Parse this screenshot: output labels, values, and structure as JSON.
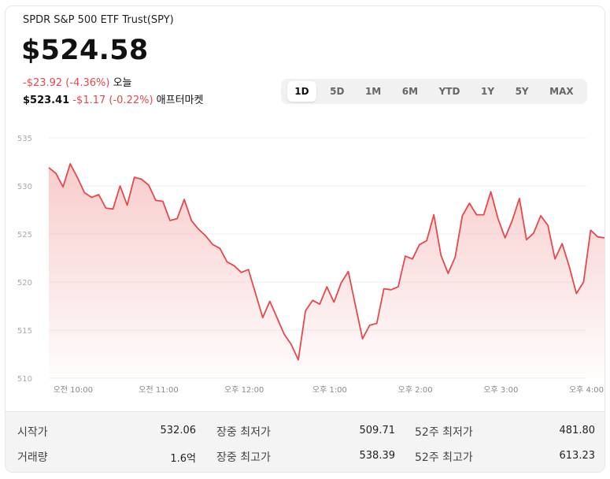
{
  "header": {
    "title": "SPDR S&P 500 ETF Trust(SPY)",
    "price": "$524.58",
    "change_today": "-$23.92 (-4.36%)",
    "today_label": "오늘",
    "after_price": "$523.41",
    "after_change": "-$1.17 (-0.22%)",
    "after_label": "애프터마켓"
  },
  "ranges": [
    "1D",
    "5D",
    "1M",
    "6M",
    "YTD",
    "1Y",
    "5Y",
    "MAX"
  ],
  "active_range": "1D",
  "colors": {
    "line": "#e5484d",
    "fill_top": "#f8c9c9",
    "negative": "#e5484d"
  },
  "chart_data": {
    "type": "area",
    "ylim": [
      510,
      535
    ],
    "yticks": [
      535,
      530,
      525,
      520,
      515,
      510
    ],
    "xtick_labels": [
      "오전 10:00",
      "오전 11:00",
      "오후 12:00",
      "오후 1:00",
      "오후 2:00",
      "오후 3:00",
      "오후 4:00"
    ],
    "xtick_positions": [
      0,
      60,
      120,
      180,
      240,
      300,
      360
    ],
    "xlim": [
      -17,
      360
    ],
    "grid": true,
    "points": [
      [
        -17,
        531.9
      ],
      [
        -12,
        531.3
      ],
      [
        -7,
        529.9
      ],
      [
        -2,
        532.3
      ],
      [
        3,
        530.9
      ],
      [
        8,
        529.3
      ],
      [
        13,
        528.8
      ],
      [
        18,
        529.1
      ],
      [
        23,
        527.7
      ],
      [
        28,
        527.6
      ],
      [
        33,
        530.0
      ],
      [
        38,
        528.0
      ],
      [
        43,
        530.9
      ],
      [
        48,
        530.7
      ],
      [
        53,
        530.1
      ],
      [
        58,
        528.5
      ],
      [
        63,
        528.4
      ],
      [
        68,
        526.4
      ],
      [
        73,
        526.6
      ],
      [
        78,
        528.6
      ],
      [
        83,
        526.4
      ],
      [
        88,
        525.5
      ],
      [
        93,
        524.8
      ],
      [
        98,
        523.9
      ],
      [
        103,
        523.5
      ],
      [
        108,
        522.1
      ],
      [
        113,
        521.7
      ],
      [
        118,
        521.0
      ],
      [
        123,
        521.3
      ],
      [
        128,
        518.8
      ],
      [
        133,
        516.3
      ],
      [
        138,
        518.0
      ],
      [
        143,
        516.3
      ],
      [
        148,
        514.6
      ],
      [
        153,
        513.5
      ],
      [
        158,
        511.9
      ],
      [
        163,
        517.0
      ],
      [
        168,
        518.1
      ],
      [
        173,
        517.7
      ],
      [
        178,
        519.5
      ],
      [
        183,
        517.9
      ],
      [
        188,
        519.9
      ],
      [
        193,
        521.1
      ],
      [
        198,
        517.6
      ],
      [
        203,
        514.1
      ],
      [
        208,
        515.5
      ],
      [
        213,
        515.7
      ],
      [
        218,
        519.3
      ],
      [
        223,
        519.2
      ],
      [
        228,
        519.5
      ],
      [
        233,
        522.7
      ],
      [
        238,
        522.4
      ],
      [
        243,
        523.9
      ],
      [
        248,
        524.3
      ],
      [
        253,
        527.0
      ],
      [
        258,
        522.8
      ],
      [
        263,
        520.9
      ],
      [
        268,
        522.6
      ],
      [
        273,
        526.9
      ],
      [
        278,
        528.2
      ],
      [
        283,
        527.0
      ],
      [
        288,
        527.0
      ],
      [
        293,
        529.4
      ],
      [
        298,
        526.6
      ],
      [
        303,
        524.6
      ],
      [
        308,
        526.4
      ],
      [
        313,
        528.7
      ],
      [
        318,
        524.4
      ],
      [
        323,
        525.1
      ],
      [
        328,
        526.9
      ],
      [
        333,
        525.9
      ],
      [
        338,
        522.4
      ],
      [
        343,
        524.0
      ],
      [
        348,
        521.6
      ],
      [
        353,
        518.8
      ],
      [
        358,
        520.0
      ],
      [
        363,
        525.4
      ],
      [
        368,
        524.7
      ],
      [
        373,
        524.6
      ]
    ]
  },
  "stats": {
    "open_label": "시작가",
    "open_value": "532.06",
    "volume_label": "거래량",
    "volume_value": "1.6억",
    "day_low_label": "장중 최저가",
    "day_low_value": "509.71",
    "day_high_label": "장중 최고가",
    "day_high_value": "538.39",
    "wk52_low_label": "52주 최저가",
    "wk52_low_value": "481.80",
    "wk52_high_label": "52주 최고가",
    "wk52_high_value": "613.23"
  }
}
